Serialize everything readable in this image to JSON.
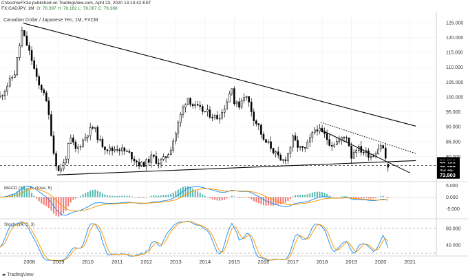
{
  "header": {
    "publisher": "CVecchioFX3e published on TradingView.com, April 23, 2020 13:14:42 EST",
    "symbol_line": "FX:CADJPY, 1M",
    "ohlc": "O: 76.397  H: 78.182  L: 76.067  C: 76.388"
  },
  "pair_title": "Canadian Dollar / Japanese Yen, 1M, FXCM",
  "macd_label": "MACD (12, 26, close, 9)",
  "stoch_label": "Stoch (14, 3, 3)",
  "footer": "TradingView",
  "colors": {
    "up": "#ffffff",
    "down": "#000000",
    "macd": "#2196f3",
    "signal": "#ff9800",
    "hist_pos": "#26a69a",
    "hist_neg": "#ef5350",
    "k": "#2196f3",
    "d": "#ff9800",
    "label_bg": "#000000"
  },
  "chart_data": [
    {
      "type": "candlestick",
      "title": "Canadian Dollar / Japanese Yen, 1M, FXCM",
      "x_ticks": [
        "2008",
        "2009",
        "2010",
        "2011",
        "2012",
        "2013",
        "2014",
        "2015",
        "2016",
        "2017",
        "2018",
        "2019",
        "2020",
        "2021"
      ],
      "y_ticks": [
        125.0,
        120.0,
        115.0,
        110.0,
        105.0,
        100.0,
        95.0,
        90.0,
        85.0,
        80.0
      ],
      "ylim": [
        72.0,
        127.5
      ],
      "price_labels": [
        {
          "text": "78.502",
          "value": 78.502
        },
        {
          "text": "77.498",
          "value": 77.498
        },
        {
          "text": "76.388",
          "value": 76.388
        },
        {
          "text": "7d 3h",
          "value": 75.1
        },
        {
          "text": "73.803",
          "value": 73.803
        }
      ],
      "trendlines": [
        {
          "name": "upper",
          "from": [
            2007.8,
            124.8
          ],
          "to": [
            2021.2,
            90.2
          ]
        },
        {
          "name": "lower",
          "from": [
            2008.95,
            73.8
          ],
          "to": [
            2021.2,
            78.6
          ]
        },
        {
          "name": "channel-upper",
          "style": "dotted",
          "from": [
            2017.95,
            91.5
          ],
          "to": [
            2021.2,
            81.0
          ]
        },
        {
          "name": "channel-lower",
          "from": [
            2017.95,
            89.0
          ],
          "to": [
            2021.0,
            74.5
          ]
        }
      ],
      "hlines": [
        {
          "value": 76.95,
          "style": "dashed"
        }
      ],
      "waypoints": [
        [
          2007.0,
          100
        ],
        [
          2007.5,
          108
        ],
        [
          2007.75,
          122
        ],
        [
          2007.9,
          118
        ],
        [
          2008.1,
          112
        ],
        [
          2008.3,
          104
        ],
        [
          2008.5,
          102
        ],
        [
          2008.7,
          92
        ],
        [
          2008.85,
          80
        ],
        [
          2009.0,
          75
        ],
        [
          2009.2,
          78
        ],
        [
          2009.4,
          86
        ],
        [
          2009.6,
          82
        ],
        [
          2009.8,
          85
        ],
        [
          2010.0,
          88
        ],
        [
          2010.2,
          90
        ],
        [
          2010.4,
          85
        ],
        [
          2010.6,
          83
        ],
        [
          2010.8,
          82
        ],
        [
          2011.0,
          83
        ],
        [
          2011.2,
          82
        ],
        [
          2011.4,
          81
        ],
        [
          2011.6,
          79
        ],
        [
          2011.8,
          77
        ],
        [
          2012.0,
          78
        ],
        [
          2012.2,
          80
        ],
        [
          2012.4,
          78
        ],
        [
          2012.6,
          79
        ],
        [
          2012.8,
          82
        ],
        [
          2013.0,
          88
        ],
        [
          2013.2,
          95
        ],
        [
          2013.4,
          100
        ],
        [
          2013.6,
          97
        ],
        [
          2013.8,
          96
        ],
        [
          2014.0,
          95
        ],
        [
          2014.2,
          94
        ],
        [
          2014.4,
          93
        ],
        [
          2014.6,
          95
        ],
        [
          2014.8,
          100
        ],
        [
          2014.92,
          104
        ],
        [
          2015.0,
          98
        ],
        [
          2015.15,
          97
        ],
        [
          2015.35,
          101
        ],
        [
          2015.5,
          98
        ],
        [
          2015.7,
          92
        ],
        [
          2015.85,
          90
        ],
        [
          2016.0,
          85
        ],
        [
          2016.2,
          84
        ],
        [
          2016.4,
          81
        ],
        [
          2016.6,
          78
        ],
        [
          2016.8,
          80
        ],
        [
          2017.0,
          86
        ],
        [
          2017.2,
          83
        ],
        [
          2017.4,
          82
        ],
        [
          2017.6,
          86
        ],
        [
          2017.8,
          90
        ],
        [
          2017.95,
          88
        ],
        [
          2018.1,
          87
        ],
        [
          2018.3,
          84
        ],
        [
          2018.5,
          85
        ],
        [
          2018.7,
          86
        ],
        [
          2018.85,
          87
        ],
        [
          2019.0,
          80
        ],
        [
          2019.15,
          83
        ],
        [
          2019.35,
          82
        ],
        [
          2019.55,
          81
        ],
        [
          2019.7,
          80
        ],
        [
          2019.85,
          82
        ],
        [
          2020.0,
          84
        ],
        [
          2020.12,
          82
        ],
        [
          2020.22,
          76.4
        ],
        [
          2020.3,
          76.4
        ]
      ]
    },
    {
      "type": "line",
      "title": "MACD (12, 26, close, 9)",
      "y_ticks": [
        5.0,
        0.0,
        -5.0
      ],
      "ylim": [
        -9,
        6
      ],
      "series": [
        {
          "values": []
        },
        {
          "values": []
        }
      ]
    },
    {
      "type": "line",
      "title": "Stoch (14, 3, 3)",
      "y_ticks": [
        80.0,
        40.0
      ],
      "ylim": [
        15,
        100
      ],
      "hlines": [
        80,
        20
      ],
      "series": [
        {
          "values": []
        },
        {
          "values": []
        }
      ]
    }
  ]
}
